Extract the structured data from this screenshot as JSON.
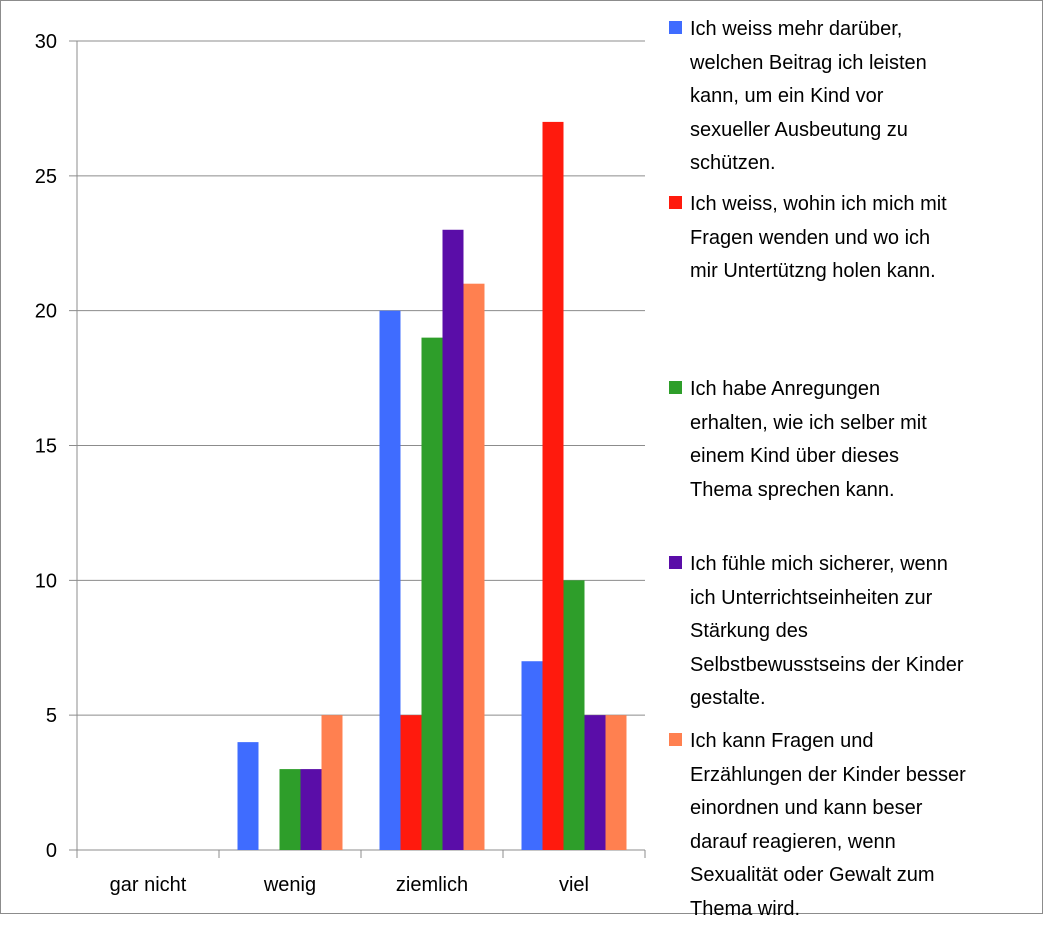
{
  "chart_data": {
    "type": "bar",
    "categories": [
      "gar nicht",
      "wenig",
      "ziemlich",
      "viel"
    ],
    "ylim": [
      0,
      30
    ],
    "yticks": [
      0,
      5,
      10,
      15,
      20,
      25,
      30
    ],
    "grid": true,
    "legend_position": "right",
    "title": "",
    "xlabel": "",
    "ylabel": "",
    "series": [
      {
        "name": "Ich weiss mehr darüber,\nwelchen Beitrag ich leisten\nkann, um ein Kind vor\nsexueller Ausbeutung zu\nschützen.",
        "color": "#3f6cff",
        "values": [
          0,
          4,
          20,
          7
        ]
      },
      {
        "name": "Ich weiss, wohin ich mich mit\nFragen wenden und wo ich\nmir Untertützng holen kann.",
        "color": "#ff1a0d",
        "values": [
          0,
          0,
          5,
          27
        ]
      },
      {
        "name": "Ich habe Anregungen\nerhalten, wie ich selber mit\neinem Kind über dieses\nThema sprechen kann.",
        "color": "#2e9e2a",
        "values": [
          0,
          3,
          19,
          10
        ]
      },
      {
        "name": "Ich fühle mich sicherer, wenn\nich Unterrichtseinheiten zur\nStärkung des\nSelbstbewusstseins der Kinder\ngestalte.",
        "color": "#5a0da8",
        "values": [
          0,
          3,
          23,
          5
        ]
      },
      {
        "name": "Ich kann Fragen und\nErzählungen der Kinder besser\neinordnen und kann beser\ndarauf reagieren, wenn\nSexualität oder Gewalt zum\nThema wird.",
        "color": "#ff8050",
        "values": [
          0,
          5,
          21,
          5
        ]
      }
    ]
  }
}
